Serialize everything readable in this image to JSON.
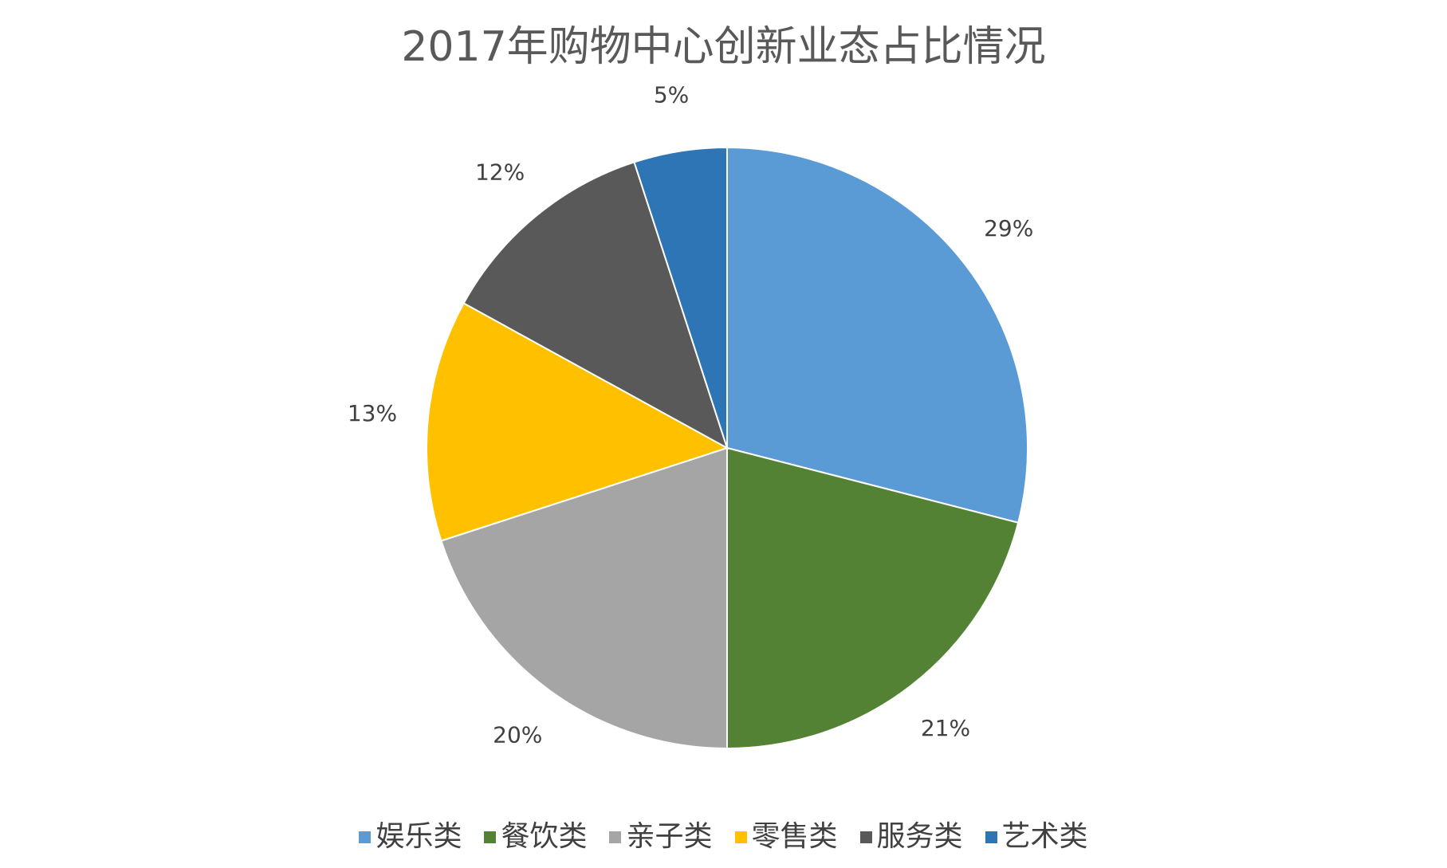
{
  "chart_data": {
    "type": "pie",
    "title": "2017年购物中心创新业态占比情况",
    "start_angle_deg": 0,
    "direction": "clockwise",
    "slices": [
      {
        "label": "娱乐类",
        "value": 29,
        "display": "29%",
        "color": "#5B9BD5"
      },
      {
        "label": "餐饮类",
        "value": 21,
        "display": "21%",
        "color": "#548235"
      },
      {
        "label": "亲子类",
        "value": 20,
        "display": "20%",
        "color": "#A5A5A5"
      },
      {
        "label": "零售类",
        "value": 13,
        "display": "13%",
        "color": "#FFC000"
      },
      {
        "label": "服务类",
        "value": 12,
        "display": "12%",
        "color": "#595959"
      },
      {
        "label": "艺术类",
        "value": 5,
        "display": "5%",
        "color": "#2E75B6"
      }
    ],
    "legend_position": "bottom",
    "data_labels": "outside"
  }
}
